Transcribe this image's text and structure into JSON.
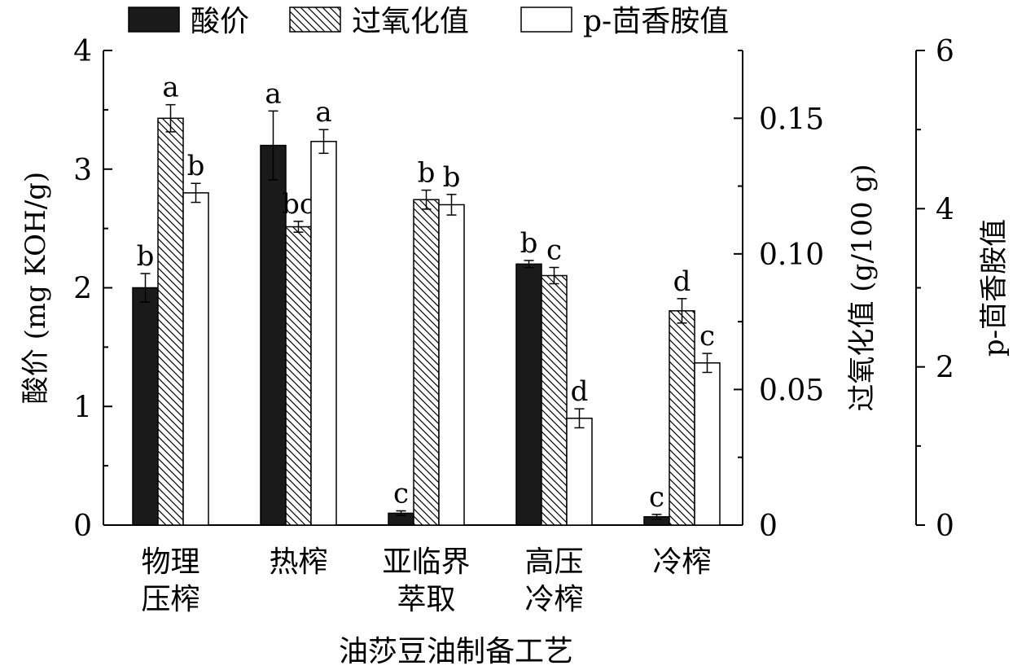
{
  "chart_data": {
    "type": "bar",
    "categories": [
      [
        "物理",
        "压榨"
      ],
      [
        "热榨"
      ],
      [
        "亚临界",
        "萃取"
      ],
      [
        "高压",
        "冷榨"
      ],
      [
        "冷榨"
      ]
    ],
    "xlabel": "油莎豆油制备工艺",
    "legend_position": "top",
    "grid": false,
    "axes": {
      "left": {
        "label": "酸价 (mg KOH/g)",
        "range": [
          0,
          4
        ],
        "ticks": [
          "0",
          "1",
          "2",
          "3",
          "4"
        ]
      },
      "right1": {
        "label": "过氧化值 (g/100 g)",
        "range": [
          0,
          0.175
        ],
        "ticks": [
          "0",
          "0.05",
          "0.10",
          "0.15"
        ]
      },
      "right2": {
        "label": "p-茴香胺值",
        "range": [
          0,
          6
        ],
        "ticks": [
          "0",
          "2",
          "4",
          "6"
        ]
      }
    },
    "series": [
      {
        "name": "酸价",
        "axis": "left",
        "style": "solid-black",
        "values": [
          2.0,
          3.2,
          0.1,
          2.2,
          0.07
        ],
        "errors": [
          0.12,
          0.29,
          0.02,
          0.03,
          0.02
        ],
        "letters": [
          "b",
          "a",
          "c",
          "b",
          "c"
        ]
      },
      {
        "name": "过氧化值",
        "axis": "right1",
        "style": "hatched",
        "values": [
          0.15,
          0.11,
          0.12,
          0.092,
          0.079
        ],
        "errors": [
          0.005,
          0.002,
          0.0035,
          0.003,
          0.0045
        ],
        "letters": [
          "a",
          "bc",
          "b",
          "c",
          "d"
        ]
      },
      {
        "name": "p-茴香胺值",
        "axis": "right2",
        "style": "white",
        "values": [
          4.2,
          4.85,
          4.05,
          1.35,
          2.05
        ],
        "errors": [
          0.12,
          0.15,
          0.13,
          0.12,
          0.12
        ],
        "letters": [
          "b",
          "a",
          "b",
          "d",
          "c"
        ]
      }
    ]
  }
}
